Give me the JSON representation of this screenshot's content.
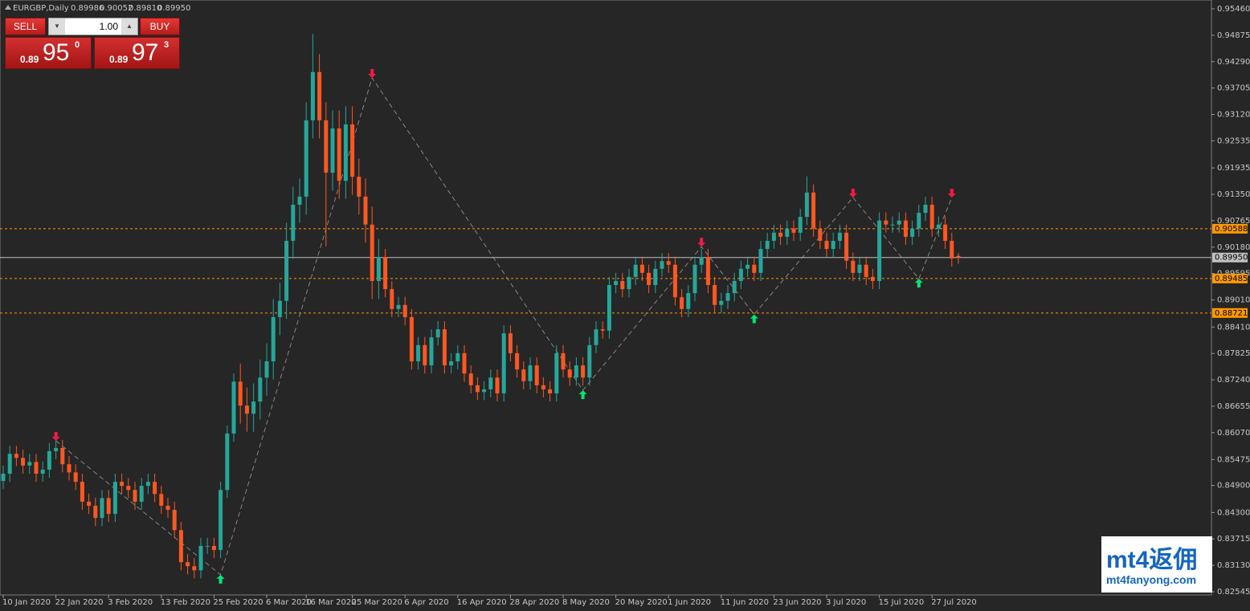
{
  "chart_data": {
    "type": "candlestick",
    "title": "EURGBP,Daily",
    "header_ohlc_labels": [
      "0.89986",
      "0.90052",
      "0.89810",
      "0.89950"
    ],
    "up_color": "#26a69a",
    "down_color": "#ff5722",
    "ylim": [
      0.82545,
      0.9546
    ],
    "yticks": [
      {
        "value": 0.9546,
        "label": "0.95460"
      },
      0.94875,
      {
        "value": 0.9429,
        "label": "0.94290"
      },
      0.93705,
      {
        "value": 0.9312,
        "label": "0.93120"
      },
      0.92535,
      0.91935,
      {
        "value": 0.9135,
        "label": "0.91350"
      },
      0.90765,
      {
        "value": 0.9018,
        "label": "0.90180"
      },
      0.89595,
      {
        "value": 0.8901,
        "label": "0.89010"
      },
      {
        "value": 0.8841,
        "label": "0.88410"
      },
      0.87825,
      {
        "value": 0.8724,
        "label": "0.87240"
      },
      0.86655,
      {
        "value": 0.8607,
        "label": "0.86070"
      },
      0.85475,
      {
        "value": 0.849,
        "label": "0.84900"
      },
      {
        "value": 0.843,
        "label": "0.84300"
      },
      0.83715,
      {
        "value": 0.8313,
        "label": "0.83130"
      },
      0.82545
    ],
    "levels": [
      0.90588,
      0.89485,
      0.88721
    ],
    "current": {
      "value": 0.8995,
      "label": "0.89950"
    },
    "categories": [
      "10 Jan 2020",
      null,
      null,
      null,
      null,
      null,
      null,
      null,
      "22 Jan 2020",
      null,
      null,
      null,
      null,
      null,
      null,
      null,
      "3 Feb 2020",
      null,
      null,
      null,
      null,
      null,
      null,
      null,
      "13 Feb 2020",
      null,
      null,
      null,
      null,
      null,
      null,
      null,
      "25 Feb 2020",
      null,
      null,
      null,
      null,
      null,
      null,
      null,
      "6 Mar 2020",
      null,
      null,
      null,
      null,
      null,
      "16 Mar 2020",
      null,
      null,
      null,
      null,
      null,
      null,
      "25 Mar 2020",
      null,
      null,
      null,
      null,
      null,
      null,
      null,
      "6 Apr 2020",
      null,
      null,
      null,
      null,
      null,
      null,
      null,
      "16 Apr 2020",
      null,
      null,
      null,
      null,
      null,
      null,
      null,
      "28 Apr 2020",
      null,
      null,
      null,
      null,
      null,
      null,
      null,
      "8 May 2020",
      null,
      null,
      null,
      null,
      null,
      null,
      null,
      "20 May 2020",
      null,
      null,
      null,
      null,
      null,
      null,
      null,
      "1 Jun 2020",
      null,
      null,
      null,
      null,
      null,
      null,
      null,
      "11 Jun 2020",
      null,
      null,
      null,
      null,
      null,
      null,
      null,
      "23 Jun 2020",
      null,
      null,
      null,
      null,
      null,
      null,
      null,
      "3 Jul 2020",
      null,
      null,
      null,
      null,
      null,
      null,
      null,
      "15 Jul 2020",
      null,
      null,
      null,
      null,
      null,
      null,
      null,
      "27 Jul 2020",
      null,
      null,
      null,
      null
    ],
    "ohlc": [
      [
        0.85,
        0.8534,
        0.8482,
        0.8516
      ],
      [
        0.8516,
        0.8578,
        0.8498,
        0.856
      ],
      [
        0.856,
        0.8578,
        0.8533,
        0.8551
      ],
      [
        0.8551,
        0.8569,
        0.8516,
        0.8534
      ],
      [
        0.8534,
        0.856,
        0.8516,
        0.8542
      ],
      [
        0.8542,
        0.856,
        0.8498,
        0.8516
      ],
      [
        0.8516,
        0.8543,
        0.8498,
        0.8525
      ],
      [
        0.8525,
        0.8584,
        0.8507,
        0.8566
      ],
      [
        0.8566,
        0.8591,
        0.8548,
        0.8573
      ],
      [
        0.8573,
        0.8591,
        0.8519,
        0.8537
      ],
      [
        0.8537,
        0.8555,
        0.8501,
        0.8519
      ],
      [
        0.8519,
        0.8537,
        0.848,
        0.8498
      ],
      [
        0.8498,
        0.8516,
        0.8436,
        0.8454
      ],
      [
        0.8454,
        0.8472,
        0.8427,
        0.8445
      ],
      [
        0.8445,
        0.8463,
        0.84,
        0.8418
      ],
      [
        0.8418,
        0.848,
        0.84,
        0.8462
      ],
      [
        0.8462,
        0.848,
        0.8409,
        0.8427
      ],
      [
        0.8427,
        0.8516,
        0.8409,
        0.8498
      ],
      [
        0.8498,
        0.8516,
        0.8471,
        0.8489
      ],
      [
        0.8489,
        0.8507,
        0.8462,
        0.848
      ],
      [
        0.848,
        0.8498,
        0.8436,
        0.8454
      ],
      [
        0.8454,
        0.8507,
        0.8436,
        0.8489
      ],
      [
        0.8489,
        0.8516,
        0.8471,
        0.8498
      ],
      [
        0.8498,
        0.8516,
        0.8453,
        0.8471
      ],
      [
        0.8471,
        0.8489,
        0.8427,
        0.8445
      ],
      [
        0.8445,
        0.8463,
        0.8418,
        0.8436
      ],
      [
        0.8436,
        0.8454,
        0.8373,
        0.8391
      ],
      [
        0.8391,
        0.8409,
        0.8302,
        0.832
      ],
      [
        0.832,
        0.8338,
        0.8293,
        0.8311
      ],
      [
        0.8311,
        0.8329,
        0.8284,
        0.8302
      ],
      [
        0.8302,
        0.8374,
        0.8284,
        0.8356
      ],
      [
        0.8356,
        0.8374,
        0.8338,
        0.8356
      ],
      [
        0.8356,
        0.8374,
        0.8329,
        0.8347
      ],
      [
        0.8347,
        0.8498,
        0.8329,
        0.848
      ],
      [
        0.848,
        0.8623,
        0.8462,
        0.8605
      ],
      [
        0.8605,
        0.8738,
        0.8587,
        0.872
      ],
      [
        0.872,
        0.876,
        0.8627,
        0.8667
      ],
      [
        0.8667,
        0.8707,
        0.8609,
        0.8649
      ],
      [
        0.8649,
        0.8716,
        0.8609,
        0.8676
      ],
      [
        0.8676,
        0.8769,
        0.8636,
        0.8729
      ],
      [
        0.8729,
        0.8805,
        0.8689,
        0.8765
      ],
      [
        0.8765,
        0.8903,
        0.8725,
        0.8863
      ],
      [
        0.8863,
        0.8939,
        0.8823,
        0.8899
      ],
      [
        0.8899,
        0.9072,
        0.8859,
        0.9032
      ],
      [
        0.9032,
        0.9152,
        0.8992,
        0.9112
      ],
      [
        0.9112,
        0.917,
        0.9072,
        0.913
      ],
      [
        0.913,
        0.9339,
        0.909,
        0.9299
      ],
      [
        0.9299,
        0.949,
        0.9259,
        0.9406
      ],
      [
        0.9406,
        0.9446,
        0.9259,
        0.9299
      ],
      [
        0.9299,
        0.9339,
        0.902,
        0.9183
      ],
      [
        0.9183,
        0.9321,
        0.9143,
        0.9281
      ],
      [
        0.9281,
        0.9321,
        0.9125,
        0.9165
      ],
      [
        0.9165,
        0.933,
        0.9125,
        0.929
      ],
      [
        0.929,
        0.933,
        0.9134,
        0.9174
      ],
      [
        0.9174,
        0.9214,
        0.909,
        0.913
      ],
      [
        0.913,
        0.917,
        0.9028,
        0.9068
      ],
      [
        0.9068,
        0.9108,
        0.8903,
        0.8943
      ],
      [
        0.8943,
        0.9036,
        0.8903,
        0.8996
      ],
      [
        0.8996,
        0.9014,
        0.8907,
        0.8925
      ],
      [
        0.8925,
        0.8943,
        0.8863,
        0.8881
      ],
      [
        0.8881,
        0.8908,
        0.8863,
        0.889
      ],
      [
        0.889,
        0.8908,
        0.8845,
        0.8863
      ],
      [
        0.8863,
        0.8881,
        0.8747,
        0.8765
      ],
      [
        0.8765,
        0.8819,
        0.8747,
        0.8801
      ],
      [
        0.8801,
        0.8819,
        0.8738,
        0.8756
      ],
      [
        0.8756,
        0.8836,
        0.8738,
        0.8818
      ],
      [
        0.8818,
        0.8854,
        0.88,
        0.8836
      ],
      [
        0.8836,
        0.8854,
        0.8738,
        0.8756
      ],
      [
        0.8756,
        0.8783,
        0.8738,
        0.8765
      ],
      [
        0.8765,
        0.8801,
        0.8747,
        0.8783
      ],
      [
        0.8783,
        0.8801,
        0.872,
        0.8738
      ],
      [
        0.8738,
        0.8756,
        0.8694,
        0.8712
      ],
      [
        0.8712,
        0.873,
        0.8679,
        0.8697
      ],
      [
        0.8697,
        0.8721,
        0.8679,
        0.8703
      ],
      [
        0.8703,
        0.8747,
        0.8685,
        0.8729
      ],
      [
        0.8729,
        0.8747,
        0.8676,
        0.8694
      ],
      [
        0.8694,
        0.8845,
        0.8676,
        0.8827
      ],
      [
        0.8827,
        0.8845,
        0.8765,
        0.8783
      ],
      [
        0.8783,
        0.8801,
        0.8729,
        0.8747
      ],
      [
        0.8747,
        0.8765,
        0.8703,
        0.8721
      ],
      [
        0.8721,
        0.8774,
        0.8703,
        0.8756
      ],
      [
        0.8756,
        0.8774,
        0.8694,
        0.8712
      ],
      [
        0.8712,
        0.873,
        0.8685,
        0.8703
      ],
      [
        0.8703,
        0.8721,
        0.8676,
        0.8694
      ],
      [
        0.8694,
        0.8801,
        0.8676,
        0.8783
      ],
      [
        0.8783,
        0.8801,
        0.8729,
        0.8747
      ],
      [
        0.8747,
        0.8765,
        0.8711,
        0.8729
      ],
      [
        0.8729,
        0.8774,
        0.8711,
        0.8756
      ],
      [
        0.8756,
        0.8774,
        0.8711,
        0.8729
      ],
      [
        0.8729,
        0.8819,
        0.8711,
        0.8801
      ],
      [
        0.8801,
        0.8854,
        0.8783,
        0.8836
      ],
      [
        0.8836,
        0.8854,
        0.8815,
        0.8833
      ],
      [
        0.8833,
        0.8952,
        0.8815,
        0.8934
      ],
      [
        0.8934,
        0.8961,
        0.8916,
        0.8943
      ],
      [
        0.8943,
        0.8961,
        0.8907,
        0.8925
      ],
      [
        0.8925,
        0.897,
        0.8907,
        0.8952
      ],
      [
        0.8952,
        0.8997,
        0.8934,
        0.8979
      ],
      [
        0.8979,
        0.8997,
        0.8943,
        0.8961
      ],
      [
        0.8961,
        0.8979,
        0.8916,
        0.8934
      ],
      [
        0.8934,
        0.8988,
        0.8916,
        0.897
      ],
      [
        0.897,
        0.9005,
        0.8952,
        0.8987
      ],
      [
        0.8987,
        0.9005,
        0.8961,
        0.8979
      ],
      [
        0.8979,
        0.8997,
        0.8889,
        0.8907
      ],
      [
        0.8907,
        0.8925,
        0.8863,
        0.8881
      ],
      [
        0.8881,
        0.8934,
        0.8863,
        0.8916
      ],
      [
        0.8916,
        0.8997,
        0.8898,
        0.8979
      ],
      [
        0.8979,
        0.9014,
        0.8961,
        0.8996
      ],
      [
        0.8996,
        0.9014,
        0.8916,
        0.8934
      ],
      [
        0.8934,
        0.8952,
        0.8872,
        0.889
      ],
      [
        0.889,
        0.8917,
        0.8872,
        0.8899
      ],
      [
        0.8899,
        0.8934,
        0.8881,
        0.8916
      ],
      [
        0.8916,
        0.8961,
        0.8898,
        0.8943
      ],
      [
        0.8943,
        0.8988,
        0.8925,
        0.897
      ],
      [
        0.897,
        0.8997,
        0.8952,
        0.8979
      ],
      [
        0.8979,
        0.8997,
        0.8943,
        0.8961
      ],
      [
        0.8961,
        0.9032,
        0.8943,
        0.9014
      ],
      [
        0.9014,
        0.905,
        0.8996,
        0.9032
      ],
      [
        0.9032,
        0.9068,
        0.9014,
        0.905
      ],
      [
        0.905,
        0.9068,
        0.9023,
        0.9041
      ],
      [
        0.9041,
        0.9077,
        0.9023,
        0.9059
      ],
      [
        0.9059,
        0.9077,
        0.9032,
        0.905
      ],
      [
        0.905,
        0.9103,
        0.9032,
        0.9085
      ],
      [
        0.9085,
        0.9175,
        0.9067,
        0.9139
      ],
      [
        0.9139,
        0.9157,
        0.9041,
        0.9059
      ],
      [
        0.9059,
        0.9077,
        0.9014,
        0.9032
      ],
      [
        0.9032,
        0.905,
        0.8996,
        0.9014
      ],
      [
        0.9014,
        0.905,
        0.8996,
        0.9032
      ],
      [
        0.9032,
        0.9068,
        0.9014,
        0.905
      ],
      [
        0.905,
        0.9068,
        0.897,
        0.8988
      ],
      [
        0.8988,
        0.9006,
        0.8943,
        0.8961
      ],
      [
        0.8961,
        0.8997,
        0.8943,
        0.8979
      ],
      [
        0.8979,
        0.8997,
        0.8934,
        0.8952
      ],
      [
        0.8952,
        0.897,
        0.8925,
        0.8943
      ],
      [
        0.8943,
        0.9095,
        0.8925,
        0.9077
      ],
      [
        0.9077,
        0.9095,
        0.905,
        0.9068
      ],
      [
        0.9068,
        0.9086,
        0.905,
        0.9068
      ],
      [
        0.9068,
        0.9095,
        0.905,
        0.9077
      ],
      [
        0.9077,
        0.9095,
        0.9023,
        0.9041
      ],
      [
        0.9041,
        0.9077,
        0.9023,
        0.9059
      ],
      [
        0.9059,
        0.9112,
        0.9041,
        0.9094
      ],
      [
        0.9094,
        0.913,
        0.9076,
        0.9112
      ],
      [
        0.9112,
        0.913,
        0.9041,
        0.9059
      ],
      [
        0.9059,
        0.9086,
        0.9041,
        0.9068
      ],
      [
        0.9068,
        0.9086,
        0.9014,
        0.9032
      ],
      [
        0.9032,
        0.905,
        0.8975,
        0.8993
      ],
      [
        0.89986,
        0.90052,
        0.8981,
        0.8995
      ]
    ],
    "signals": [
      {
        "index": 8,
        "price": 0.8589,
        "dir": "down"
      },
      {
        "index": 33,
        "price": 0.8292,
        "dir": "up"
      },
      {
        "index": 56,
        "price": 0.9393,
        "dir": "down"
      },
      {
        "index": 88,
        "price": 0.8701,
        "dir": "up"
      },
      {
        "index": 106,
        "price": 0.9019,
        "dir": "down"
      },
      {
        "index": 114,
        "price": 0.8869,
        "dir": "up"
      },
      {
        "index": 129,
        "price": 0.9128,
        "dir": "down"
      },
      {
        "index": 139,
        "price": 0.8948,
        "dir": "up"
      },
      {
        "index": 144,
        "price": 0.9128,
        "dir": "down"
      }
    ]
  },
  "panel": {
    "sell": "SELL",
    "buy": "BUY",
    "lot": "1.00",
    "bid": {
      "prefix": "0.89",
      "big": "95",
      "small": "0"
    },
    "ask": {
      "prefix": "0.89",
      "big": "97",
      "small": "3"
    }
  },
  "watermark": {
    "logo": "mt4返佣",
    "url": "mt4fanyong.com"
  }
}
